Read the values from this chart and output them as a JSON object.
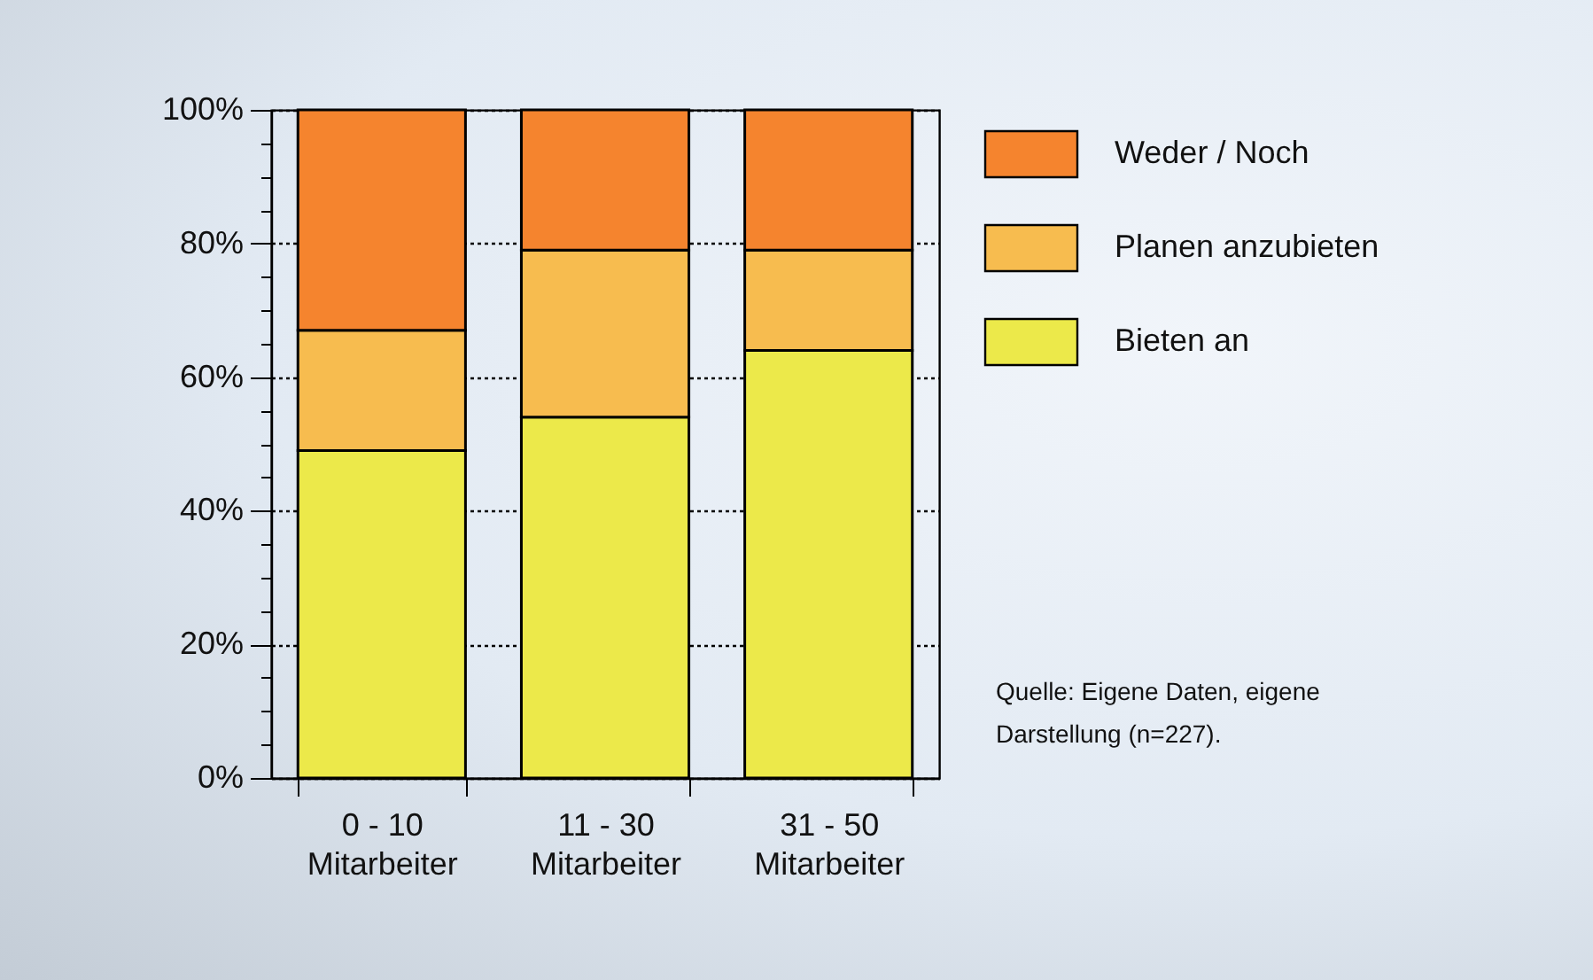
{
  "chart_data": {
    "type": "bar",
    "stacked": true,
    "categories": [
      "0 - 10\nMitarbeiter",
      "11 - 30\nMitarbeiter",
      "31 - 50\nMitarbeiter"
    ],
    "series": [
      {
        "name": "Bieten an",
        "color": "#ece94a",
        "values": [
          49,
          54,
          64
        ]
      },
      {
        "name": "Planen anzubieten",
        "color": "#f7bc4f",
        "values": [
          18,
          25,
          15
        ]
      },
      {
        "name": "Weder / Noch",
        "color": "#f5842e",
        "values": [
          33,
          21,
          21
        ]
      }
    ],
    "ylim": [
      0,
      100
    ],
    "yticks": [
      {
        "value": 0,
        "label": "0%"
      },
      {
        "value": 5,
        "label": null
      },
      {
        "value": 10,
        "label": null
      },
      {
        "value": 15,
        "label": null
      },
      {
        "value": 20,
        "label": "20%"
      },
      {
        "value": 25,
        "label": null
      },
      {
        "value": 30,
        "label": null
      },
      {
        "value": 35,
        "label": null
      },
      {
        "value": 40,
        "label": "40%"
      },
      {
        "value": 45,
        "label": null
      },
      {
        "value": 50,
        "label": null
      },
      {
        "value": 55,
        "label": null
      },
      {
        "value": 60,
        "label": "60%"
      },
      {
        "value": 65,
        "label": null
      },
      {
        "value": 70,
        "label": null
      },
      {
        "value": 75,
        "label": null
      },
      {
        "value": 80,
        "label": "80%"
      },
      {
        "value": 85,
        "label": null
      },
      {
        "value": 90,
        "label": null
      },
      {
        "value": 95,
        "label": null
      },
      {
        "value": 100,
        "label": "100%"
      }
    ],
    "grid": "y",
    "legend": "top right",
    "annotations": [
      "Quelle: Eigene Daten, eigene Darstellung (n=227)."
    ]
  }
}
